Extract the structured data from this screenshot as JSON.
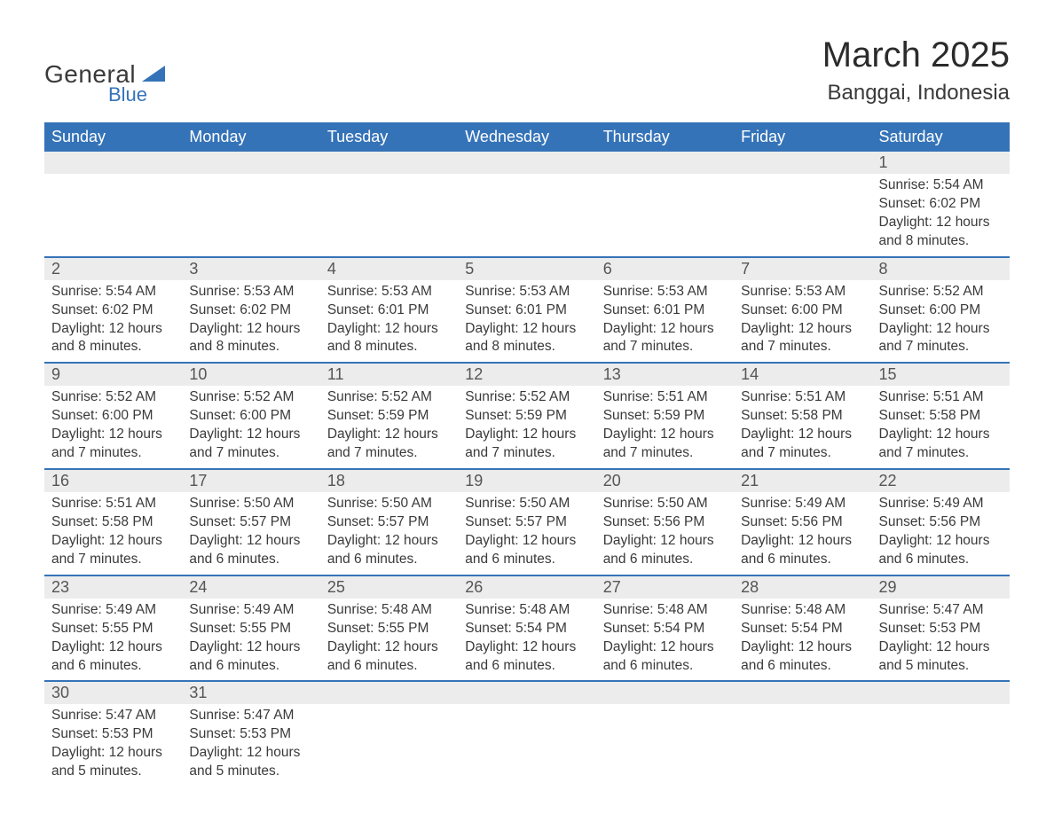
{
  "brand": {
    "name1": "General",
    "name2": "Blue",
    "accent_color": "#3573b8"
  },
  "title": "March 2025",
  "location": "Banggai, Indonesia",
  "colors": {
    "header_bg": "#3573b8",
    "header_text": "#ffffff",
    "daynum_bg": "#ececec",
    "text": "#3a3a3a",
    "rule": "#3573b8"
  },
  "fonts": {
    "title_size_pt": 30,
    "location_size_pt": 18,
    "header_size_pt": 14,
    "body_size_pt": 12
  },
  "weekdays": [
    "Sunday",
    "Monday",
    "Tuesday",
    "Wednesday",
    "Thursday",
    "Friday",
    "Saturday"
  ],
  "labels": {
    "sunrise": "Sunrise: ",
    "sunset": "Sunset: ",
    "daylight": "Daylight: "
  },
  "weeks": [
    [
      null,
      null,
      null,
      null,
      null,
      null,
      {
        "d": "1",
        "sr": "5:54 AM",
        "ss": "6:02 PM",
        "dl": "12 hours and 8 minutes."
      }
    ],
    [
      {
        "d": "2",
        "sr": "5:54 AM",
        "ss": "6:02 PM",
        "dl": "12 hours and 8 minutes."
      },
      {
        "d": "3",
        "sr": "5:53 AM",
        "ss": "6:02 PM",
        "dl": "12 hours and 8 minutes."
      },
      {
        "d": "4",
        "sr": "5:53 AM",
        "ss": "6:01 PM",
        "dl": "12 hours and 8 minutes."
      },
      {
        "d": "5",
        "sr": "5:53 AM",
        "ss": "6:01 PM",
        "dl": "12 hours and 8 minutes."
      },
      {
        "d": "6",
        "sr": "5:53 AM",
        "ss": "6:01 PM",
        "dl": "12 hours and 7 minutes."
      },
      {
        "d": "7",
        "sr": "5:53 AM",
        "ss": "6:00 PM",
        "dl": "12 hours and 7 minutes."
      },
      {
        "d": "8",
        "sr": "5:52 AM",
        "ss": "6:00 PM",
        "dl": "12 hours and 7 minutes."
      }
    ],
    [
      {
        "d": "9",
        "sr": "5:52 AM",
        "ss": "6:00 PM",
        "dl": "12 hours and 7 minutes."
      },
      {
        "d": "10",
        "sr": "5:52 AM",
        "ss": "6:00 PM",
        "dl": "12 hours and 7 minutes."
      },
      {
        "d": "11",
        "sr": "5:52 AM",
        "ss": "5:59 PM",
        "dl": "12 hours and 7 minutes."
      },
      {
        "d": "12",
        "sr": "5:52 AM",
        "ss": "5:59 PM",
        "dl": "12 hours and 7 minutes."
      },
      {
        "d": "13",
        "sr": "5:51 AM",
        "ss": "5:59 PM",
        "dl": "12 hours and 7 minutes."
      },
      {
        "d": "14",
        "sr": "5:51 AM",
        "ss": "5:58 PM",
        "dl": "12 hours and 7 minutes."
      },
      {
        "d": "15",
        "sr": "5:51 AM",
        "ss": "5:58 PM",
        "dl": "12 hours and 7 minutes."
      }
    ],
    [
      {
        "d": "16",
        "sr": "5:51 AM",
        "ss": "5:58 PM",
        "dl": "12 hours and 7 minutes."
      },
      {
        "d": "17",
        "sr": "5:50 AM",
        "ss": "5:57 PM",
        "dl": "12 hours and 6 minutes."
      },
      {
        "d": "18",
        "sr": "5:50 AM",
        "ss": "5:57 PM",
        "dl": "12 hours and 6 minutes."
      },
      {
        "d": "19",
        "sr": "5:50 AM",
        "ss": "5:57 PM",
        "dl": "12 hours and 6 minutes."
      },
      {
        "d": "20",
        "sr": "5:50 AM",
        "ss": "5:56 PM",
        "dl": "12 hours and 6 minutes."
      },
      {
        "d": "21",
        "sr": "5:49 AM",
        "ss": "5:56 PM",
        "dl": "12 hours and 6 minutes."
      },
      {
        "d": "22",
        "sr": "5:49 AM",
        "ss": "5:56 PM",
        "dl": "12 hours and 6 minutes."
      }
    ],
    [
      {
        "d": "23",
        "sr": "5:49 AM",
        "ss": "5:55 PM",
        "dl": "12 hours and 6 minutes."
      },
      {
        "d": "24",
        "sr": "5:49 AM",
        "ss": "5:55 PM",
        "dl": "12 hours and 6 minutes."
      },
      {
        "d": "25",
        "sr": "5:48 AM",
        "ss": "5:55 PM",
        "dl": "12 hours and 6 minutes."
      },
      {
        "d": "26",
        "sr": "5:48 AM",
        "ss": "5:54 PM",
        "dl": "12 hours and 6 minutes."
      },
      {
        "d": "27",
        "sr": "5:48 AM",
        "ss": "5:54 PM",
        "dl": "12 hours and 6 minutes."
      },
      {
        "d": "28",
        "sr": "5:48 AM",
        "ss": "5:54 PM",
        "dl": "12 hours and 6 minutes."
      },
      {
        "d": "29",
        "sr": "5:47 AM",
        "ss": "5:53 PM",
        "dl": "12 hours and 5 minutes."
      }
    ],
    [
      {
        "d": "30",
        "sr": "5:47 AM",
        "ss": "5:53 PM",
        "dl": "12 hours and 5 minutes."
      },
      {
        "d": "31",
        "sr": "5:47 AM",
        "ss": "5:53 PM",
        "dl": "12 hours and 5 minutes."
      },
      null,
      null,
      null,
      null,
      null
    ]
  ]
}
